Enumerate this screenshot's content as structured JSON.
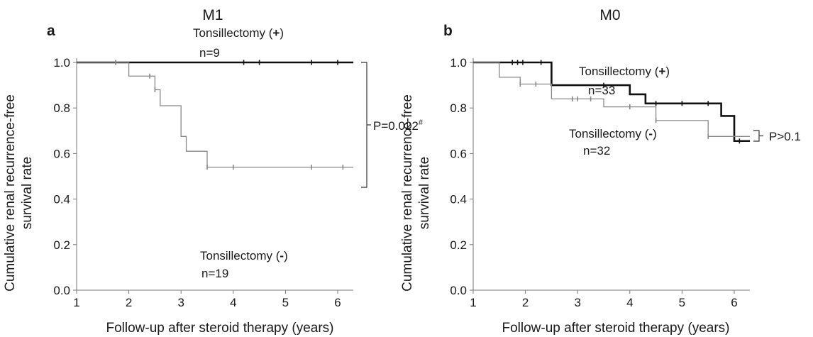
{
  "chart_data": [
    {
      "type": "line",
      "panel_label": "a",
      "title": "M1",
      "xlabel": "Follow-up after steroid therapy (years)",
      "ylabel_line1": "Cumulative renal recurrence-free",
      "ylabel_line2": "survival rate",
      "xlim": [
        1,
        6.3
      ],
      "ylim": [
        0,
        1.05
      ],
      "x_ticks": [
        "1",
        "2",
        "3",
        "4",
        "5",
        "6"
      ],
      "y_ticks": [
        "0.0",
        "0.2",
        "0.4",
        "0.6",
        "0.8",
        "1.0"
      ],
      "series": [
        {
          "label_text": "Tonsillectomy (",
          "label_sign": "+",
          "label_close": ")",
          "n_text": "n=9",
          "color": "#111111",
          "steps": [
            [
              1,
              1.0
            ],
            [
              6.3,
              1.0
            ]
          ],
          "censors": [
            [
              1.75,
              1.0
            ],
            [
              4.2,
              1.0
            ],
            [
              4.5,
              1.0
            ],
            [
              5.5,
              1.0
            ],
            [
              6.0,
              1.0
            ]
          ]
        },
        {
          "label_text": "Tonsillectomy (",
          "label_sign": "-",
          "label_close": ")",
          "n_text": "n=19",
          "color": "#888888",
          "steps": [
            [
              1,
              1.0
            ],
            [
              2.0,
              0.94
            ],
            [
              2.5,
              0.88
            ],
            [
              2.6,
              0.81
            ],
            [
              3.0,
              0.675
            ],
            [
              3.1,
              0.61
            ],
            [
              3.5,
              0.54
            ],
            [
              6.3,
              0.54
            ]
          ],
          "censors": [
            [
              1.75,
              1.0
            ],
            [
              2.4,
              0.94
            ],
            [
              2.5,
              0.88
            ],
            [
              3.5,
              0.54
            ],
            [
              4.0,
              0.54
            ],
            [
              5.5,
              0.54
            ],
            [
              6.1,
              0.54
            ]
          ]
        }
      ],
      "p_value": "P=0.022",
      "p_superscript": "#"
    },
    {
      "type": "line",
      "panel_label": "b",
      "title": "M0",
      "xlabel": "Follow-up after steroid therapy (years)",
      "ylabel_line1": "Cumulative renal recurrence-free",
      "ylabel_line2": "survival rate",
      "xlim": [
        1,
        6.3
      ],
      "ylim": [
        0,
        1.05
      ],
      "x_ticks": [
        "1",
        "2",
        "3",
        "4",
        "5",
        "6"
      ],
      "y_ticks": [
        "0.0",
        "0.2",
        "0.4",
        "0.6",
        "0.8",
        "1.0"
      ],
      "series": [
        {
          "label_text": "Tonsillectomy (",
          "label_sign": "+",
          "label_close": ")",
          "n_text": "n=33",
          "color": "#111111",
          "steps": [
            [
              1,
              1.0
            ],
            [
              2.5,
              0.9
            ],
            [
              4.0,
              0.86
            ],
            [
              4.3,
              0.82
            ],
            [
              5.75,
              0.765
            ],
            [
              6.0,
              0.655
            ],
            [
              6.3,
              0.655
            ]
          ],
          "censors": [
            [
              1.75,
              1.0
            ],
            [
              1.85,
              1.0
            ],
            [
              1.95,
              1.0
            ],
            [
              2.3,
              1.0
            ],
            [
              3.5,
              0.9
            ],
            [
              4.5,
              0.82
            ],
            [
              5.0,
              0.82
            ],
            [
              5.5,
              0.82
            ],
            [
              6.1,
              0.655
            ]
          ]
        },
        {
          "label_text": "Tonsillectomy (",
          "label_sign": "-",
          "label_close": ")",
          "n_text": "n=32",
          "color": "#888888",
          "steps": [
            [
              1,
              1.0
            ],
            [
              1.5,
              0.935
            ],
            [
              1.9,
              0.905
            ],
            [
              2.5,
              0.84
            ],
            [
              3.5,
              0.805
            ],
            [
              4.5,
              0.745
            ],
            [
              5.5,
              0.675
            ],
            [
              6.3,
              0.675
            ]
          ],
          "censors": [
            [
              1.9,
              0.905
            ],
            [
              2.2,
              0.905
            ],
            [
              2.9,
              0.84
            ],
            [
              3.0,
              0.84
            ],
            [
              3.25,
              0.84
            ],
            [
              4.0,
              0.805
            ],
            [
              4.5,
              0.745
            ],
            [
              5.5,
              0.675
            ]
          ]
        }
      ],
      "p_value": "P>0.1",
      "p_superscript": ""
    }
  ]
}
